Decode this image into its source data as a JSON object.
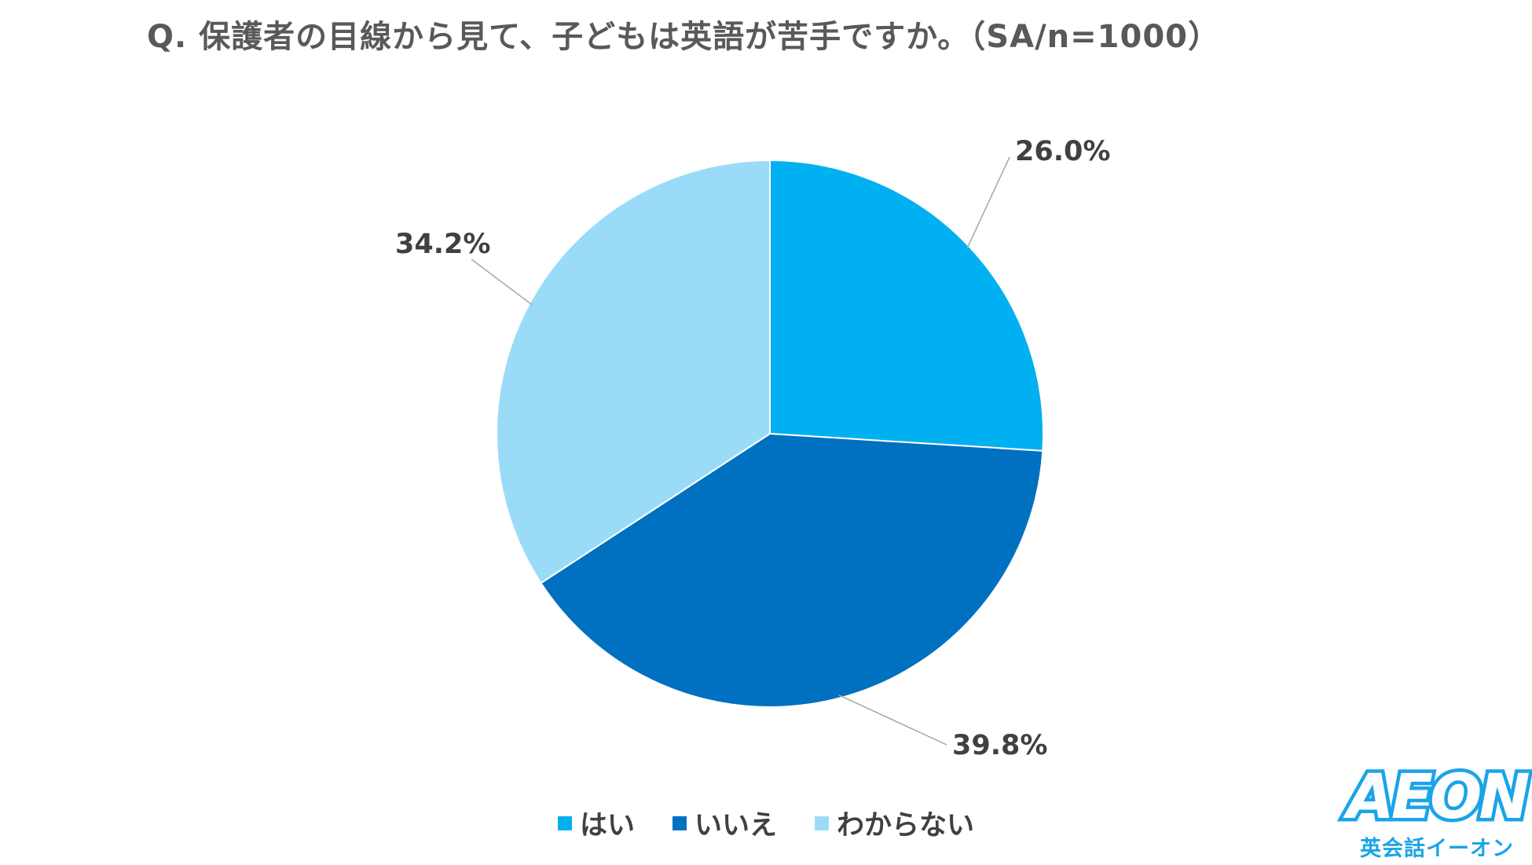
{
  "chart_data": {
    "type": "pie",
    "title": "Q. 保護者の目線から見て、子どもは英語が苦手ですか。（SA/n=1000）",
    "categories": [
      "はい",
      "いいえ",
      "わからない"
    ],
    "values": [
      26.0,
      39.8,
      34.2
    ],
    "data_labels": [
      "26.0%",
      "39.8%",
      "34.2%"
    ],
    "colors": [
      "#00b0f0",
      "#0070c0",
      "#9adcf8"
    ],
    "start_angle_deg": 0,
    "direction": "clockwise",
    "legend_position": "bottom"
  },
  "logo": {
    "word": "AEON",
    "sub": "英会話イーオン"
  }
}
